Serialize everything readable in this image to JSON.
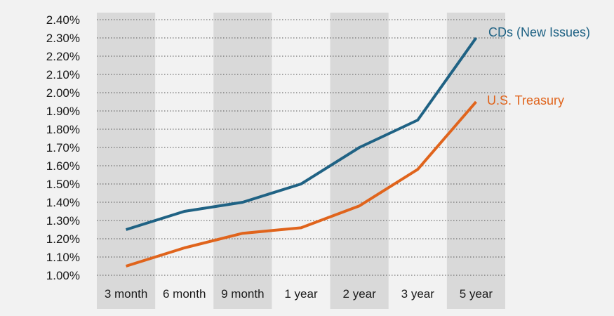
{
  "chart_data": {
    "type": "line",
    "title": "",
    "xlabel": "",
    "ylabel": "",
    "categories": [
      "3 month",
      "6 month",
      "9 month",
      "1 year",
      "2 year",
      "3 year",
      "5 year"
    ],
    "ylim": [
      1.0,
      2.4
    ],
    "yticks": [
      "1.00%",
      "1.10%",
      "1.20%",
      "1.30%",
      "1.40%",
      "1.50%",
      "1.60%",
      "1.70%",
      "1.80%",
      "1.90%",
      "2.00%",
      "2.10%",
      "2.20%",
      "2.30%",
      "2.40%"
    ],
    "grid": "horizontal-dotted",
    "series": [
      {
        "name": "CDs (New Issues)",
        "color": "#1f6284",
        "values": [
          1.25,
          1.35,
          1.4,
          1.5,
          1.7,
          1.85,
          2.3
        ]
      },
      {
        "name": "U.S. Treasury",
        "color": "#e0641c",
        "values": [
          1.05,
          1.15,
          1.23,
          1.26,
          1.38,
          1.58,
          1.95
        ]
      }
    ],
    "band_color": "#d9d9d9"
  }
}
